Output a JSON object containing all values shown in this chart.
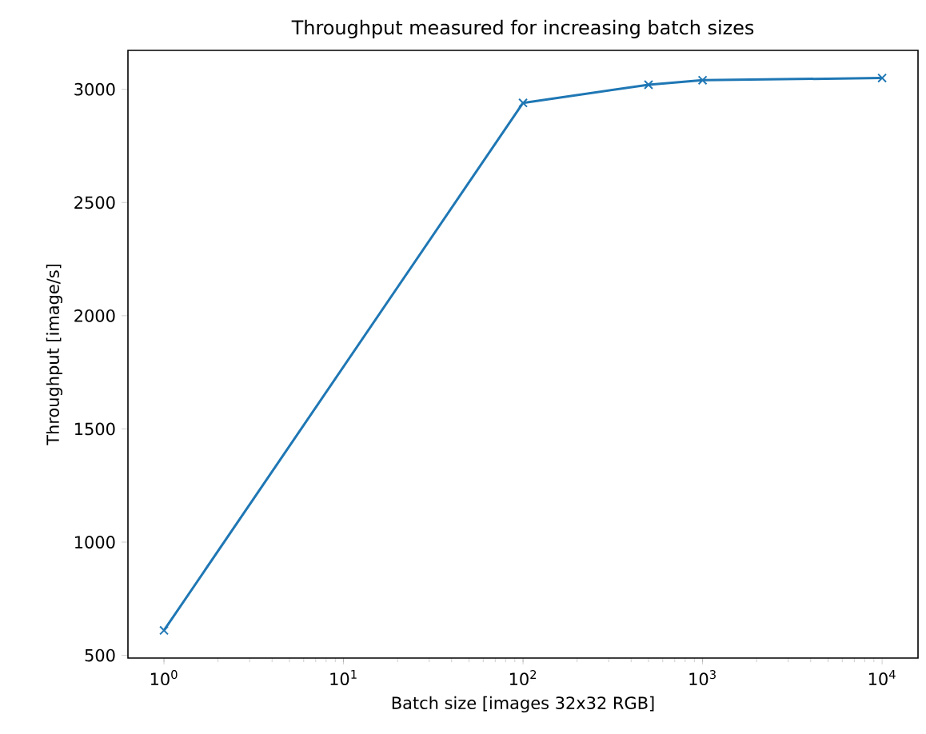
{
  "chart_data": {
    "type": "line",
    "title": "Throughput measured for increasing batch sizes",
    "xlabel": "Batch size [images 32x32 RGB]",
    "ylabel": "Throughput [image/s]",
    "log": "x",
    "marker": "cross",
    "line_style": "solid",
    "x": [
      1,
      100,
      500,
      1000,
      10000
    ],
    "series": [
      {
        "color": "#1f77b4",
        "values": [
          610,
          2940,
          3020,
          3040,
          3050
        ]
      }
    ],
    "xlim": [
      0.63,
      15849
    ],
    "ylim": [
      488,
      3172
    ],
    "xticks": [
      {
        "value": 1,
        "label": "10$^{0}$"
      },
      {
        "value": 10,
        "label": "10$^{1}$"
      },
      {
        "value": 100,
        "label": "10$^{2}$"
      },
      {
        "value": 1000,
        "label": "10$^{3}$"
      },
      {
        "value": 10000,
        "label": "10$^{4}$"
      }
    ],
    "yticks": [
      500,
      1000,
      1500,
      2000,
      2500,
      3000
    ]
  }
}
